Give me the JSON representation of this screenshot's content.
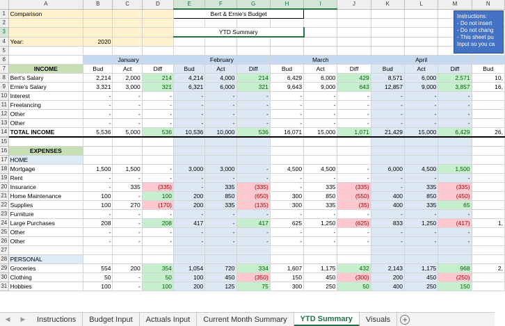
{
  "columns": [
    "A",
    "B",
    "C",
    "D",
    "E",
    "F",
    "G",
    "H",
    "I",
    "J",
    "K",
    "L",
    "M",
    "N"
  ],
  "header": {
    "title": "Comparison",
    "budget_title": "Bert & Ernie's Budget",
    "ytd_label": "YTD Summary",
    "year_label": "Year:",
    "year_value": "2020"
  },
  "instructions": {
    "title": "Instructions:",
    "lines": [
      "- Do not insert",
      "- Do not chang",
      "- This sheet pu",
      "Input so you ca"
    ]
  },
  "months": [
    "January",
    "February",
    "March",
    "April"
  ],
  "subheads": [
    "Bud",
    "Act",
    "Diff",
    "Bud",
    "Act",
    "Diff",
    "Bud",
    "Act",
    "Diff",
    "Bud",
    "Act",
    "Diff",
    "Bud"
  ],
  "income": {
    "label": "INCOME",
    "rows": [
      {
        "label": "Bert's Salary",
        "values": [
          "2,214",
          "2,000",
          "214",
          "4,214",
          "4,000",
          "214",
          "6,429",
          "6,000",
          "429",
          "8,571",
          "6,000",
          "2,571",
          "10,"
        ]
      },
      {
        "label": "Ernie's Salary",
        "values": [
          "3,321",
          "3,000",
          "321",
          "6,321",
          "6,000",
          "321",
          "9,643",
          "9,000",
          "643",
          "12,857",
          "9,000",
          "3,857",
          "16,"
        ]
      },
      {
        "label": "Interest",
        "values": [
          "-",
          "-",
          "-",
          "-",
          "-",
          "-",
          "-",
          "-",
          "-",
          "-",
          "-",
          "-",
          ""
        ]
      },
      {
        "label": "Freelancing",
        "values": [
          "-",
          "-",
          "-",
          "-",
          "-",
          "-",
          "-",
          "-",
          "-",
          "-",
          "-",
          "-",
          ""
        ]
      },
      {
        "label": "Other",
        "values": [
          "-",
          "-",
          "-",
          "-",
          "-",
          "-",
          "-",
          "-",
          "-",
          "-",
          "-",
          "-",
          ""
        ]
      },
      {
        "label": "Other",
        "values": [
          "-",
          "-",
          "-",
          "-",
          "-",
          "-",
          "-",
          "-",
          "-",
          "-",
          "-",
          "-",
          ""
        ]
      }
    ],
    "total": {
      "label": "TOTAL INCOME",
      "values": [
        "5,536",
        "5,000",
        "536",
        "10,536",
        "10,000",
        "536",
        "16,071",
        "15,000",
        "1,071",
        "21,429",
        "15,000",
        "6,429",
        "26,"
      ]
    }
  },
  "expenses": {
    "label": "EXPENSES",
    "home_label": "HOME",
    "home_rows": [
      {
        "label": "Mortgage",
        "values": [
          "1,500",
          "1,500",
          "-",
          "3,000",
          "3,000",
          "-",
          "4,500",
          "4,500",
          "-",
          "6,000",
          "4,500",
          "1,500",
          ""
        ]
      },
      {
        "label": "Rent",
        "values": [
          "-",
          "-",
          "-",
          "-",
          "-",
          "-",
          "-",
          "-",
          "-",
          "-",
          "-",
          "-",
          ""
        ]
      },
      {
        "label": "Insurance",
        "values": [
          "-",
          "335",
          "(335)",
          "-",
          "335",
          "(335)",
          "-",
          "335",
          "(335)",
          "-",
          "335",
          "(335)",
          ""
        ]
      },
      {
        "label": "Home Maintenance",
        "values": [
          "100",
          "-",
          "100",
          "200",
          "850",
          "(650)",
          "300",
          "850",
          "(550)",
          "400",
          "850",
          "(450)",
          ""
        ]
      },
      {
        "label": "Supplies",
        "values": [
          "100",
          "270",
          "(170)",
          "200",
          "335",
          "(135)",
          "300",
          "335",
          "(35)",
          "400",
          "335",
          "65",
          ""
        ]
      },
      {
        "label": "Furniture",
        "values": [
          "-",
          "-",
          "-",
          "-",
          "-",
          "-",
          "-",
          "-",
          "-",
          "-",
          "-",
          "-",
          ""
        ]
      },
      {
        "label": "Large Purchases",
        "values": [
          "208",
          "-",
          "208",
          "417",
          "-",
          "417",
          "625",
          "1,250",
          "(625)",
          "833",
          "1,250",
          "(417)",
          "1,"
        ]
      },
      {
        "label": "Other",
        "values": [
          "-",
          "-",
          "-",
          "-",
          "-",
          "-",
          "-",
          "-",
          "-",
          "-",
          "-",
          "-",
          ""
        ]
      },
      {
        "label": "Other",
        "values": [
          "-",
          "-",
          "-",
          "-",
          "-",
          "-",
          "-",
          "-",
          "-",
          "-",
          "-",
          "-",
          ""
        ]
      }
    ],
    "personal_label": "PERSONAL",
    "personal_rows": [
      {
        "label": "Groceries",
        "values": [
          "554",
          "200",
          "354",
          "1,054",
          "720",
          "334",
          "1,607",
          "1,175",
          "432",
          "2,143",
          "1,175",
          "968",
          "2,"
        ]
      },
      {
        "label": "Clothing",
        "values": [
          "50",
          "-",
          "50",
          "100",
          "450",
          "(350)",
          "150",
          "450",
          "(300)",
          "200",
          "450",
          "(250)",
          ""
        ]
      },
      {
        "label": "Hobbies",
        "values": [
          "100",
          "-",
          "100",
          "200",
          "125",
          "75",
          "300",
          "250",
          "50",
          "400",
          "250",
          "150",
          ""
        ]
      }
    ]
  },
  "tabs": [
    {
      "label": "Instructions",
      "active": false
    },
    {
      "label": "Budget Input",
      "active": false
    },
    {
      "label": "Actuals Input",
      "active": false
    },
    {
      "label": "Current Month Summary",
      "active": false
    },
    {
      "label": "YTD Summary",
      "active": true
    },
    {
      "label": "Visuals",
      "active": false
    }
  ],
  "colors": {
    "positive_fill": "#c6efce",
    "negative_fill": "#ffc7ce",
    "header_blue": "#c5d9f1",
    "band_blue": "#dce8f4",
    "title_yellow": "#fff2cc",
    "section_green": "#c6e0b4",
    "accent": "#217346"
  }
}
